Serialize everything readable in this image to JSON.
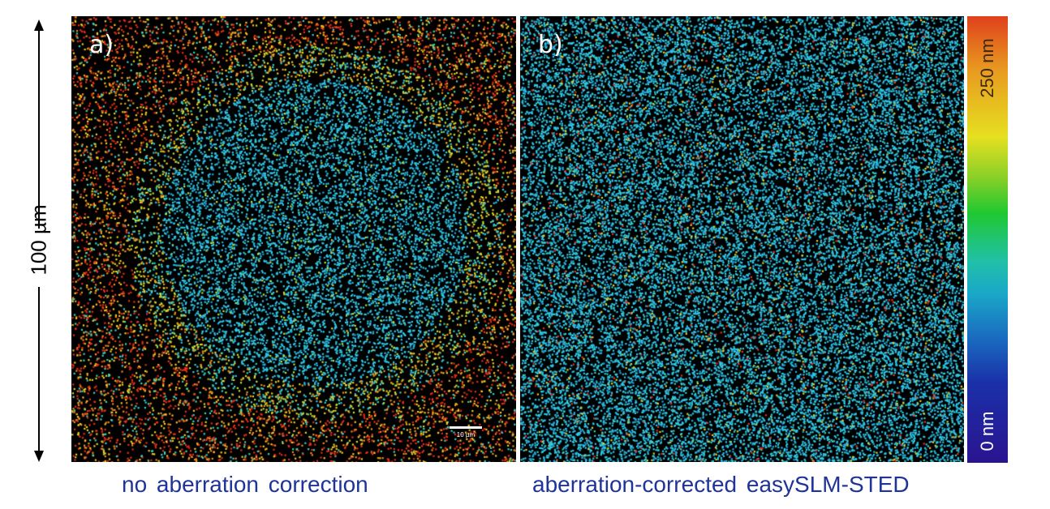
{
  "panels": [
    {
      "label": "a)",
      "caption": "no aberration correction",
      "scale_bar": "10 µm"
    },
    {
      "label": "b)",
      "caption": "aberration-corrected easySLM-STED"
    }
  ],
  "scale": {
    "label": "100 µm"
  },
  "colorbar": {
    "max_label": "250 nm",
    "min_label": "0 nm",
    "colors": [
      "#2a1490",
      "#1a30a8",
      "#1a6cc0",
      "#1aa8c8",
      "#20c0a8",
      "#20c830",
      "#8ad028",
      "#e6e020",
      "#e89a20",
      "#e0401c"
    ]
  },
  "colors": {
    "caption": "#1f3399"
  }
}
